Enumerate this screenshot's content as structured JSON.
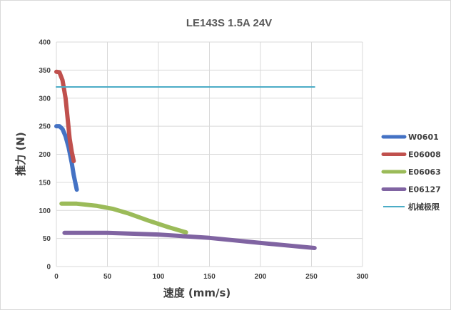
{
  "chart_data": {
    "type": "line",
    "title": "LE143S  1.5A  24V",
    "xlabel": "速度 (mm/s)",
    "ylabel": "推力 (N)",
    "xlim": [
      0,
      300
    ],
    "ylim": [
      0,
      400
    ],
    "x_ticks": [
      "0",
      "50",
      "100",
      "150",
      "200",
      "250",
      "300"
    ],
    "y_ticks": [
      "0",
      "50",
      "100",
      "150",
      "200",
      "250",
      "300",
      "350",
      "400"
    ],
    "grid": true,
    "legend_position": "right",
    "series": [
      {
        "name": "W0601",
        "color": "#4472c4",
        "points": [
          [
            0,
            250
          ],
          [
            3,
            250
          ],
          [
            6,
            245
          ],
          [
            9,
            232
          ],
          [
            12,
            212
          ],
          [
            15,
            185
          ],
          [
            17,
            163
          ],
          [
            20,
            137
          ]
        ]
      },
      {
        "name": "E06008",
        "color": "#c0504d",
        "points": [
          [
            0,
            347
          ],
          [
            3,
            346
          ],
          [
            6,
            332
          ],
          [
            9,
            300
          ],
          [
            11,
            265
          ],
          [
            13,
            228
          ],
          [
            15,
            205
          ],
          [
            17,
            188
          ]
        ]
      },
      {
        "name": "E06063",
        "color": "#9bbb59",
        "points": [
          [
            5,
            112
          ],
          [
            20,
            112
          ],
          [
            40,
            108
          ],
          [
            55,
            103
          ],
          [
            70,
            95
          ],
          [
            90,
            82
          ],
          [
            110,
            70
          ],
          [
            127,
            61
          ]
        ]
      },
      {
        "name": "E06127",
        "color": "#8064a2",
        "points": [
          [
            8,
            60
          ],
          [
            50,
            60
          ],
          [
            100,
            57
          ],
          [
            150,
            51
          ],
          [
            200,
            42
          ],
          [
            253,
            33
          ]
        ]
      },
      {
        "name": "机械极限",
        "color": "#4bacc6",
        "points": [
          [
            0,
            320
          ],
          [
            253,
            320
          ]
        ]
      }
    ]
  }
}
